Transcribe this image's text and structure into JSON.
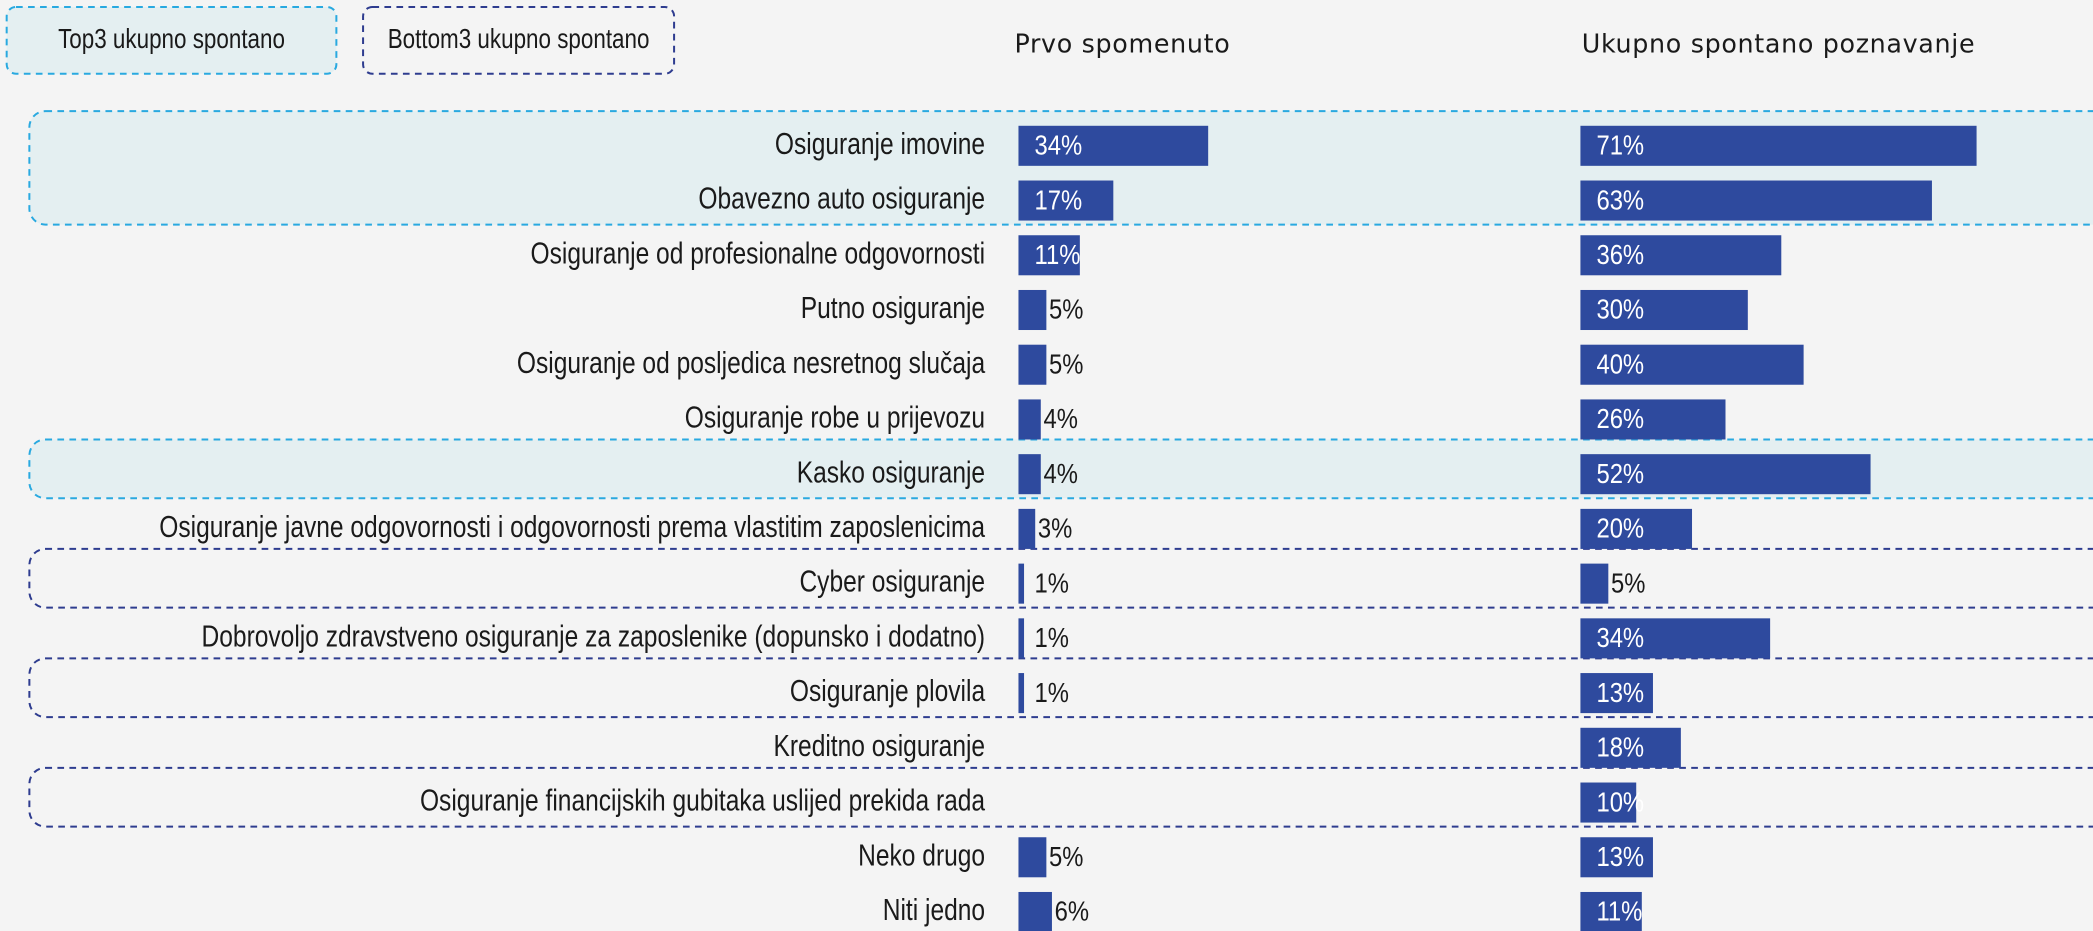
{
  "chart_data": {
    "type": "bar",
    "orientation": "horizontal",
    "categories": [
      "Osiguranje imovine",
      "Obavezno auto osiguranje",
      "Osiguranje od profesionalne odgovornosti",
      "Putno osiguranje",
      "Osiguranje od posljedica nesretnog slučaja",
      "Osiguranje robe u prijevozu",
      "Kasko osiguranje",
      "Osiguranje javne odgovornosti i odgovornosti prema vlastitim zaposlenicima",
      "Cyber osiguranje",
      "Dobrovoljo zdravstveno osiguranje za zaposlenike (dopunsko i dodatno)",
      "Osiguranje plovila",
      "Kreditno osiguranje",
      "Osiguranje financijskih gubitaka uslijed prekida rada",
      "Neko drugo",
      "Niti jedno"
    ],
    "series": [
      {
        "name": "Prvo spomenuto",
        "color": "#2e4a9e",
        "values": [
          34,
          17,
          11,
          5,
          5,
          4,
          4,
          3,
          1,
          1,
          1,
          null,
          null,
          5,
          6
        ],
        "value_labels": [
          "34%",
          "17%",
          "11%",
          "5%",
          "5%",
          "4%",
          "4%",
          "3%",
          "1%",
          "1%",
          "1%",
          null,
          null,
          "5%",
          "6%"
        ]
      },
      {
        "name": "Ukupno spontano poznavanje",
        "color": "#2e4a9e",
        "values": [
          71,
          63,
          36,
          30,
          40,
          26,
          52,
          20,
          5,
          34,
          13,
          18,
          10,
          13,
          11
        ],
        "value_labels": [
          "71%",
          "63%",
          "36%",
          "30%",
          "40%",
          "26%",
          "52%",
          "20%",
          "5%",
          "34%",
          "13%",
          "18%",
          "10%",
          "13%",
          "11%"
        ]
      }
    ],
    "highlights": [
      {
        "name": "Top3 ukupno spontano",
        "color": "#29a9e0",
        "fill": "#e4eff1",
        "rows": [
          0,
          1,
          6
        ]
      },
      {
        "name": "Bottom3 ukupno spontano",
        "color": "#2e3c8f",
        "fill": "none",
        "rows": [
          8,
          10,
          12
        ]
      }
    ]
  }
}
